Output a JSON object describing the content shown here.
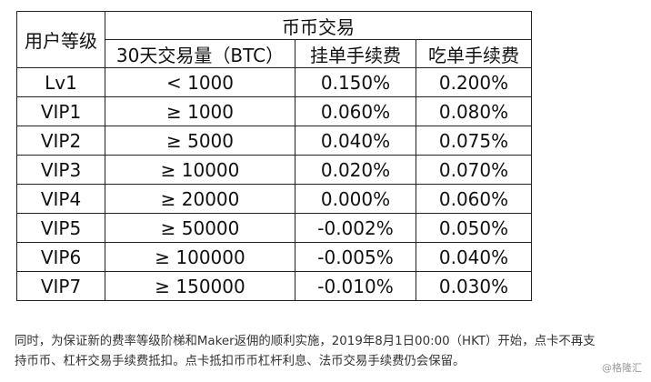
{
  "table": {
    "header": {
      "user_level": "用户等级",
      "group": "币币交易",
      "volume": "30天交易量（BTC）",
      "maker_fee": "挂单手续费",
      "taker_fee": "吃单手续费"
    },
    "rows": [
      {
        "level": "Lv1",
        "volume": "< 1000",
        "maker": "0.150%",
        "taker": "0.200%"
      },
      {
        "level": "VIP1",
        "volume": "≥ 1000",
        "maker": "0.060%",
        "taker": "0.080%"
      },
      {
        "level": "VIP2",
        "volume": "≥ 5000",
        "maker": "0.040%",
        "taker": "0.075%"
      },
      {
        "level": "VIP3",
        "volume": "≥ 10000",
        "maker": "0.020%",
        "taker": "0.070%"
      },
      {
        "level": "VIP4",
        "volume": "≥ 20000",
        "maker": "0.000%",
        "taker": "0.060%"
      },
      {
        "level": "VIP5",
        "volume": "≥ 50000",
        "maker": "-0.002%",
        "taker": "0.050%"
      },
      {
        "level": "VIP6",
        "volume": "≥ 100000",
        "maker": "-0.005%",
        "taker": "0.040%"
      },
      {
        "level": "VIP7",
        "volume": "≥ 150000",
        "maker": "-0.010%",
        "taker": "0.030%"
      }
    ]
  },
  "footnote": {
    "line1": "同时，为保证新的费率等级阶梯和Maker返佣的顺利实施，2019年8月1日00:00（HKT）开始，点卡不再支",
    "line2": "持币币、杠杆交易手续费抵扣。点卡抵扣币币杠杆利息、法币交易手续费仍会保留。"
  },
  "watermark": "@格隆汇"
}
